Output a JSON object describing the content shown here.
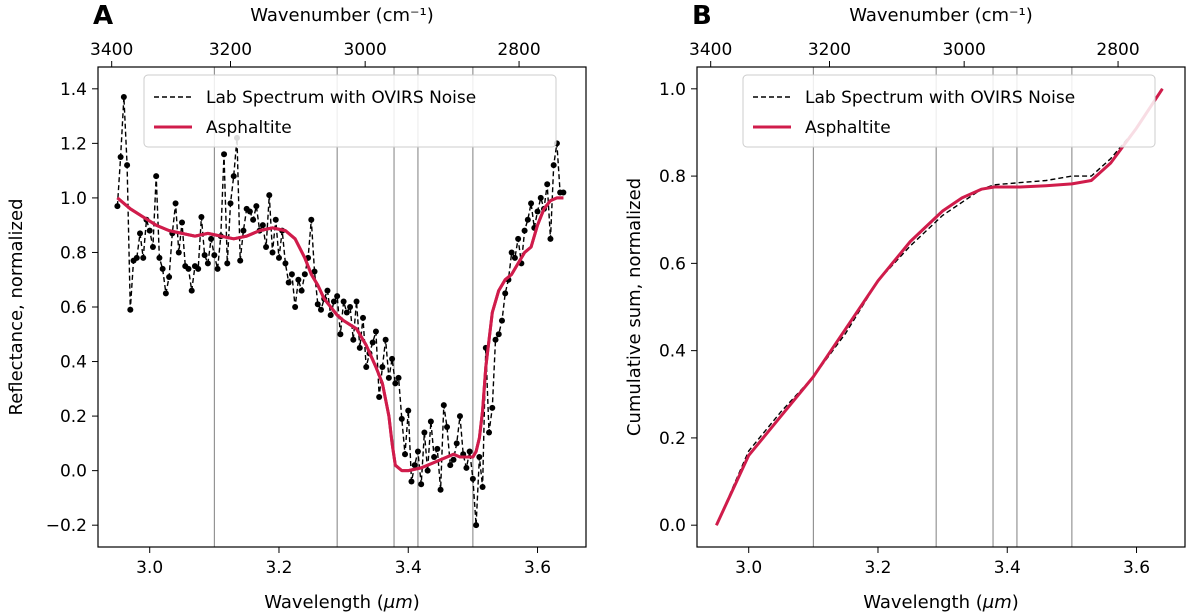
{
  "colors": {
    "accent": "#d01c4b",
    "lab": "#000000",
    "vline": "#808080"
  },
  "chart_data": [
    {
      "type": "line",
      "panel_label": "A",
      "xlabel_prefix": "Wavelength (",
      "xlabel_unit": "μm",
      "xlabel_suffix": ")",
      "ylabel": "Reflectance, normalized",
      "top_xlabel": "Wavenumber (cm⁻¹)",
      "xlim": [
        2.92,
        3.675
      ],
      "ylim": [
        -0.28,
        1.48
      ],
      "xticks": [
        3.0,
        3.2,
        3.4,
        3.6
      ],
      "xtick_labels": [
        "3.0",
        "3.2",
        "3.4",
        "3.6"
      ],
      "yticks": [
        -0.2,
        0.0,
        0.2,
        0.4,
        0.6,
        0.8,
        1.0,
        1.2,
        1.4
      ],
      "ytick_labels": [
        "−0.2",
        "0.0",
        "0.2",
        "0.4",
        "0.6",
        "0.8",
        "1.0",
        "1.2",
        "1.4"
      ],
      "top_ticks": [
        3400,
        3200,
        3000,
        2800
      ],
      "top_tick_labels": [
        "3400",
        "3200",
        "3000",
        "2800"
      ],
      "vlines": [
        3.1,
        3.29,
        3.378,
        3.415,
        3.5
      ],
      "legend": [
        "Lab Spectrum with OVIRS Noise",
        "Asphaltite"
      ],
      "series": [
        {
          "name": "Asphaltite",
          "x": [
            2.95,
            2.97,
            2.99,
            3.01,
            3.03,
            3.05,
            3.07,
            3.09,
            3.11,
            3.13,
            3.15,
            3.17,
            3.19,
            3.21,
            3.225,
            3.24,
            3.25,
            3.26,
            3.27,
            3.29,
            3.3,
            3.32,
            3.335,
            3.35,
            3.36,
            3.37,
            3.375,
            3.38,
            3.39,
            3.4,
            3.42,
            3.44,
            3.46,
            3.47,
            3.48,
            3.49,
            3.5,
            3.505,
            3.51,
            3.515,
            3.52,
            3.53,
            3.54,
            3.55,
            3.56,
            3.57,
            3.58,
            3.59,
            3.6,
            3.61,
            3.62,
            3.63,
            3.64
          ],
          "y": [
            1.0,
            0.96,
            0.93,
            0.9,
            0.88,
            0.87,
            0.86,
            0.87,
            0.86,
            0.85,
            0.86,
            0.88,
            0.89,
            0.88,
            0.85,
            0.78,
            0.72,
            0.68,
            0.63,
            0.57,
            0.55,
            0.52,
            0.46,
            0.38,
            0.32,
            0.2,
            0.1,
            0.02,
            0.0,
            0.0,
            0.01,
            0.03,
            0.05,
            0.06,
            0.05,
            0.05,
            0.05,
            0.07,
            0.12,
            0.22,
            0.38,
            0.58,
            0.66,
            0.7,
            0.72,
            0.76,
            0.8,
            0.82,
            0.9,
            0.96,
            0.99,
            1.0,
            1.0
          ]
        },
        {
          "name": "Lab Spectrum with OVIRS Noise",
          "x": [
            2.95,
            2.955,
            2.96,
            2.965,
            2.97,
            2.975,
            2.98,
            2.985,
            2.99,
            2.995,
            3.0,
            3.005,
            3.01,
            3.015,
            3.02,
            3.025,
            3.03,
            3.035,
            3.04,
            3.045,
            3.05,
            3.055,
            3.06,
            3.065,
            3.07,
            3.075,
            3.08,
            3.085,
            3.09,
            3.095,
            3.1,
            3.105,
            3.11,
            3.115,
            3.12,
            3.125,
            3.13,
            3.135,
            3.14,
            3.145,
            3.15,
            3.155,
            3.16,
            3.165,
            3.17,
            3.175,
            3.18,
            3.185,
            3.19,
            3.195,
            3.2,
            3.205,
            3.21,
            3.215,
            3.22,
            3.225,
            3.23,
            3.235,
            3.24,
            3.245,
            3.25,
            3.255,
            3.26,
            3.265,
            3.27,
            3.275,
            3.28,
            3.285,
            3.29,
            3.295,
            3.3,
            3.305,
            3.31,
            3.315,
            3.32,
            3.325,
            3.33,
            3.335,
            3.34,
            3.345,
            3.35,
            3.355,
            3.36,
            3.365,
            3.37,
            3.375,
            3.38,
            3.385,
            3.39,
            3.395,
            3.4,
            3.405,
            3.41,
            3.415,
            3.42,
            3.425,
            3.43,
            3.435,
            3.44,
            3.445,
            3.45,
            3.455,
            3.46,
            3.465,
            3.47,
            3.475,
            3.48,
            3.485,
            3.49,
            3.495,
            3.5,
            3.505,
            3.51,
            3.515,
            3.52,
            3.525,
            3.53,
            3.535,
            3.54,
            3.545,
            3.55,
            3.555,
            3.56,
            3.565,
            3.57,
            3.575,
            3.58,
            3.585,
            3.59,
            3.595,
            3.6,
            3.605,
            3.61,
            3.615,
            3.62,
            3.625,
            3.63,
            3.635,
            3.64
          ],
          "y": [
            0.97,
            1.15,
            1.37,
            1.12,
            0.59,
            0.77,
            0.78,
            0.87,
            0.78,
            0.92,
            0.88,
            0.82,
            1.08,
            0.78,
            0.74,
            0.65,
            0.71,
            0.87,
            0.98,
            0.8,
            0.91,
            0.75,
            0.74,
            0.66,
            0.75,
            0.74,
            0.93,
            0.79,
            0.76,
            0.85,
            0.79,
            0.74,
            0.86,
            1.16,
            0.76,
            0.98,
            1.08,
            1.22,
            0.77,
            0.88,
            0.96,
            0.95,
            0.92,
            0.97,
            0.88,
            0.9,
            0.82,
            1.01,
            0.8,
            0.92,
            0.78,
            0.88,
            0.76,
            0.69,
            0.72,
            0.6,
            0.7,
            0.66,
            0.72,
            0.78,
            0.92,
            0.73,
            0.61,
            0.59,
            0.63,
            0.66,
            0.57,
            0.62,
            0.64,
            0.5,
            0.62,
            0.58,
            0.6,
            0.48,
            0.62,
            0.45,
            0.56,
            0.38,
            0.43,
            0.47,
            0.51,
            0.27,
            0.38,
            0.48,
            0.34,
            0.41,
            0.32,
            0.34,
            0.19,
            0.06,
            0.22,
            -0.04,
            0.02,
            0.07,
            -0.05,
            0.14,
            0.0,
            0.18,
            0.05,
            0.08,
            -0.07,
            0.24,
            0.16,
            0.02,
            0.04,
            0.1,
            0.2,
            0.06,
            0.01,
            0.07,
            -0.03,
            -0.2,
            0.05,
            -0.06,
            0.45,
            0.14,
            0.23,
            0.48,
            0.5,
            0.55,
            0.65,
            0.7,
            0.8,
            0.78,
            0.85,
            0.76,
            0.88,
            0.92,
            0.98,
            0.89,
            0.95,
            1.0,
            0.96,
            1.05,
            0.85,
            1.12,
            1.2,
            1.02,
            1.02
          ]
        }
      ]
    },
    {
      "type": "line",
      "panel_label": "B",
      "xlabel_prefix": "Wavelength (",
      "xlabel_unit": "μm",
      "xlabel_suffix": ")",
      "ylabel": "Cumulative sum, normalized",
      "top_xlabel": "Wavenumber (cm⁻¹)",
      "xlim": [
        2.92,
        3.675
      ],
      "ylim": [
        -0.05,
        1.05
      ],
      "xticks": [
        3.0,
        3.2,
        3.4,
        3.6
      ],
      "xtick_labels": [
        "3.0",
        "3.2",
        "3.4",
        "3.6"
      ],
      "yticks": [
        0.0,
        0.2,
        0.4,
        0.6,
        0.8,
        1.0
      ],
      "ytick_labels": [
        "0.0",
        "0.2",
        "0.4",
        "0.6",
        "0.8",
        "1.0"
      ],
      "top_ticks": [
        3400,
        3200,
        3000,
        2800
      ],
      "top_tick_labels": [
        "3400",
        "3200",
        "3000",
        "2800"
      ],
      "vlines": [
        3.1,
        3.29,
        3.378,
        3.415,
        3.5
      ],
      "legend": [
        "Lab Spectrum with OVIRS Noise",
        "Asphaltite"
      ],
      "series": [
        {
          "name": "Lab Spectrum with OVIRS Noise",
          "x": [
            2.95,
            3.0,
            3.05,
            3.1,
            3.15,
            3.2,
            3.25,
            3.3,
            3.33,
            3.36,
            3.38,
            3.42,
            3.46,
            3.5,
            3.53,
            3.56,
            3.6,
            3.64
          ],
          "y": [
            0.0,
            0.17,
            0.26,
            0.34,
            0.44,
            0.56,
            0.64,
            0.71,
            0.74,
            0.77,
            0.78,
            0.785,
            0.79,
            0.8,
            0.8,
            0.84,
            0.91,
            1.0
          ]
        },
        {
          "name": "Asphaltite",
          "x": [
            2.95,
            3.0,
            3.05,
            3.1,
            3.15,
            3.2,
            3.25,
            3.3,
            3.33,
            3.36,
            3.38,
            3.42,
            3.46,
            3.5,
            3.53,
            3.56,
            3.6,
            3.64
          ],
          "y": [
            0.0,
            0.16,
            0.25,
            0.34,
            0.45,
            0.56,
            0.65,
            0.72,
            0.75,
            0.77,
            0.775,
            0.775,
            0.778,
            0.782,
            0.79,
            0.83,
            0.91,
            1.0
          ]
        }
      ]
    }
  ]
}
